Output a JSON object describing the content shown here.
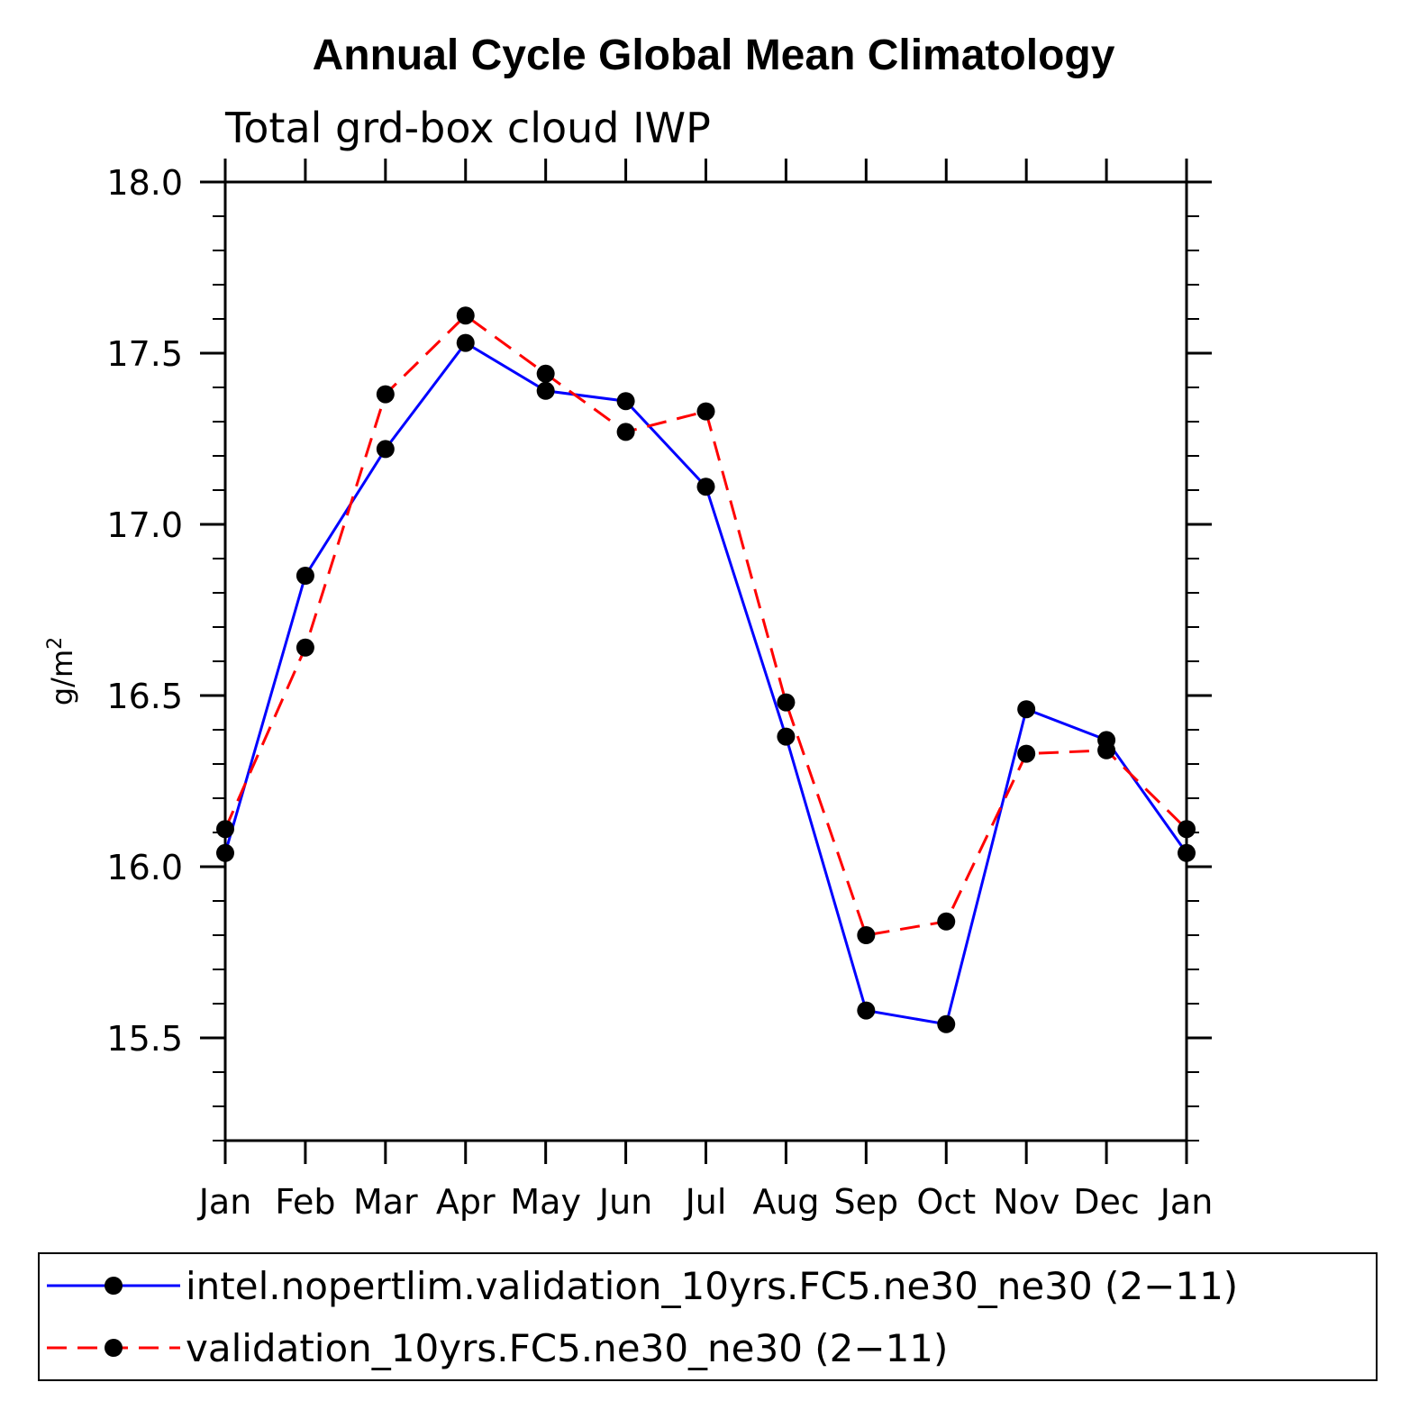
{
  "chart_data": {
    "type": "line",
    "title": "Annual Cycle Global Mean Climatology",
    "subtitle": "Total grd-box cloud IWP",
    "ylabel": "g/m",
    "ylabel_superscript": "2",
    "xlabel": "",
    "categories": [
      "Jan",
      "Feb",
      "Mar",
      "Apr",
      "May",
      "Jun",
      "Jul",
      "Aug",
      "Sep",
      "Oct",
      "Nov",
      "Dec",
      "Jan"
    ],
    "ylim": [
      15.2,
      18.0
    ],
    "yticks_major": [
      15.5,
      16.0,
      16.5,
      17.0,
      17.5,
      18.0
    ],
    "ytick_labels": [
      "15.5",
      "16.0",
      "16.5",
      "17.0",
      "17.5",
      "18.0"
    ],
    "ytick_minor_step": 0.1,
    "grid": false,
    "legend_position": "bottom",
    "series": [
      {
        "name": "intel.nopertlim.validation_10yrs.FC5.ne30_ne30 (2−11)",
        "color": "#0000ff",
        "style": "solid",
        "values": [
          16.04,
          16.85,
          17.22,
          17.53,
          17.39,
          17.36,
          17.11,
          16.38,
          15.58,
          15.54,
          16.46,
          16.37,
          16.04
        ]
      },
      {
        "name": "validation_10yrs.FC5.ne30_ne30 (2−11)",
        "color": "#ff0000",
        "style": "dashed",
        "values": [
          16.11,
          16.64,
          17.38,
          17.61,
          17.44,
          17.27,
          17.33,
          16.48,
          15.8,
          15.84,
          16.33,
          16.34,
          16.11
        ]
      }
    ]
  }
}
